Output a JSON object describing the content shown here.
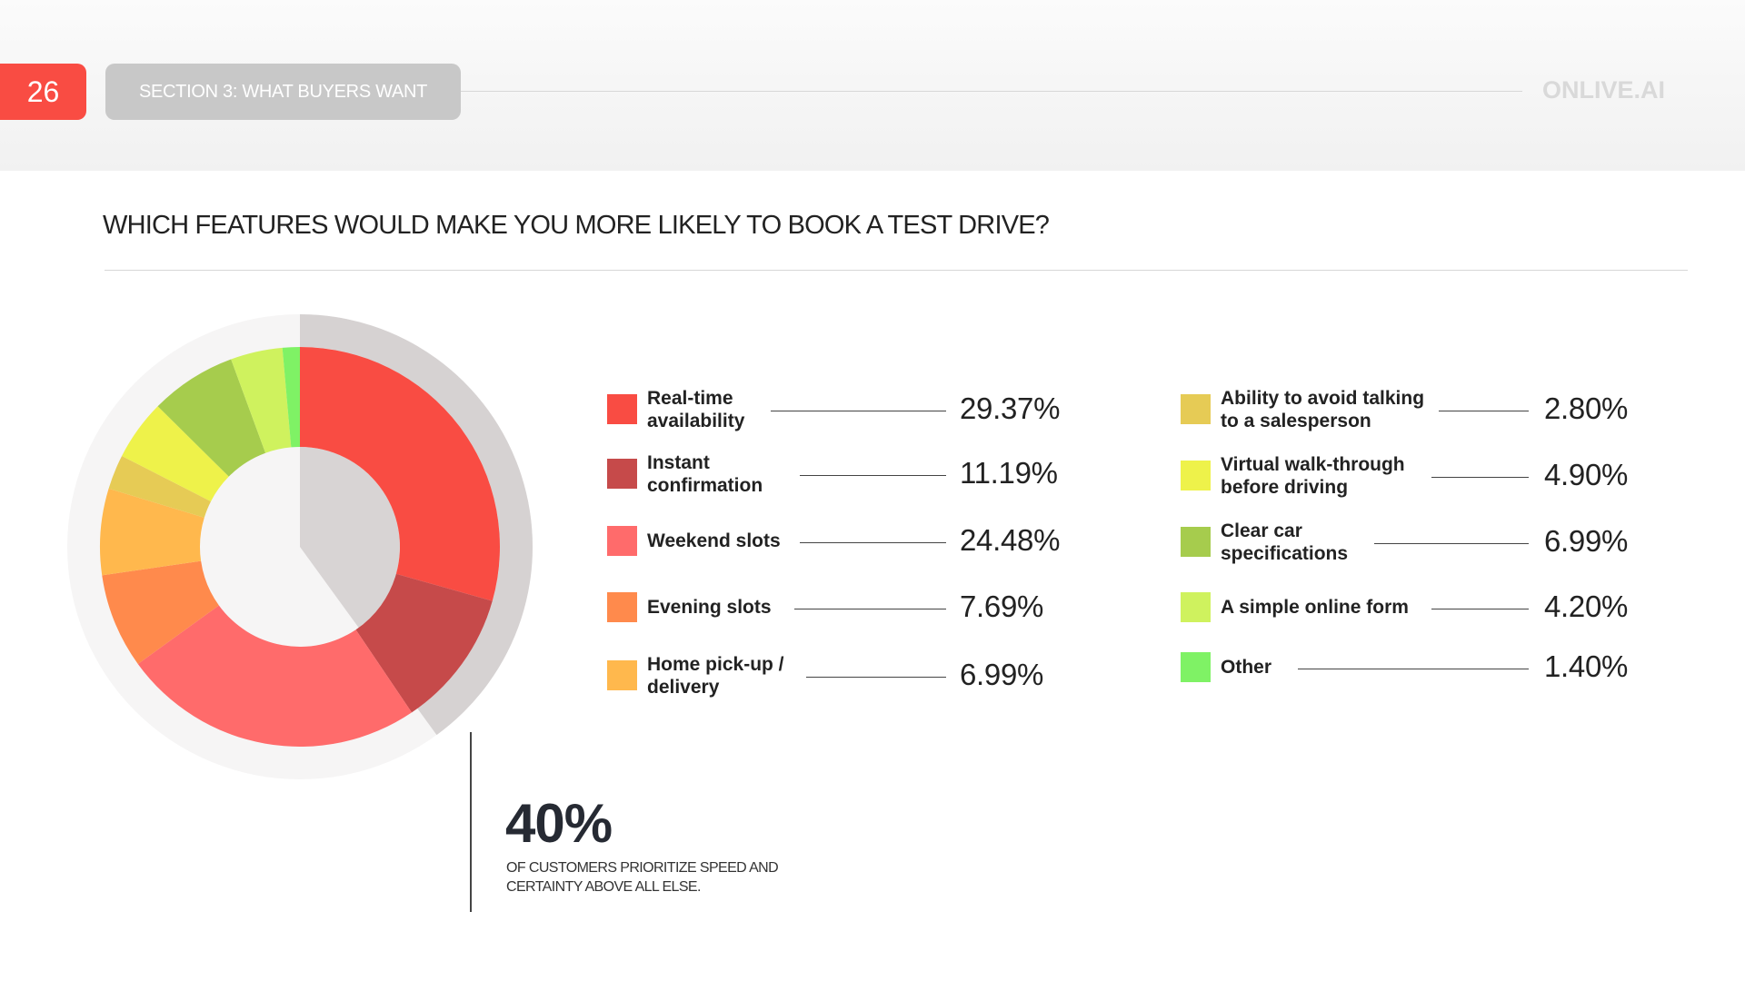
{
  "header": {
    "page_number": "26",
    "section": "SECTION 3: WHAT BUYERS WANT",
    "brand": "ONLIVE.AI"
  },
  "question": "WHICH FEATURES WOULD MAKE YOU MORE LIKELY TO BOOK A TEST DRIVE?",
  "callout": {
    "value": "40%",
    "caption": "OF CUSTOMERS PRIORITIZE SPEED AND CERTAINTY ABOVE ALL ELSE."
  },
  "colors": {
    "inner_highlight": "#d8d4d4",
    "outer_ring": "#f6f5f5",
    "outer_highlight": "#d6d2d2"
  },
  "chart_data": {
    "type": "pie",
    "title": "WHICH FEATURES WOULD MAKE YOU MORE LIKELY TO BOOK A TEST DRIVE?",
    "labels": [
      "Real-time availability",
      "Instant confirmation",
      "Weekend slots",
      "Evening slots",
      "Home pick-up / delivery",
      "Ability to avoid talking to a salesperson",
      "Virtual walk-through before driving",
      "Clear car specifications",
      "A simple online form",
      "Other"
    ],
    "values": [
      29.37,
      11.19,
      24.48,
      7.69,
      6.99,
      2.8,
      4.9,
      6.99,
      4.2,
      1.4
    ],
    "value_labels": [
      "29.37%",
      "11.19%",
      "24.48%",
      "7.69%",
      "6.99%",
      "2.80%",
      "4.90%",
      "6.99%",
      "4.20%",
      "1.40%"
    ],
    "colors": [
      "#f94c43",
      "#c64a4a",
      "#ff6b6b",
      "#ff8a4c",
      "#ffb84d",
      "#e6cb55",
      "#eef24a",
      "#a6cc4d",
      "#cff25e",
      "#7ff265"
    ],
    "highlight_share": 40,
    "legend_position": "right"
  }
}
